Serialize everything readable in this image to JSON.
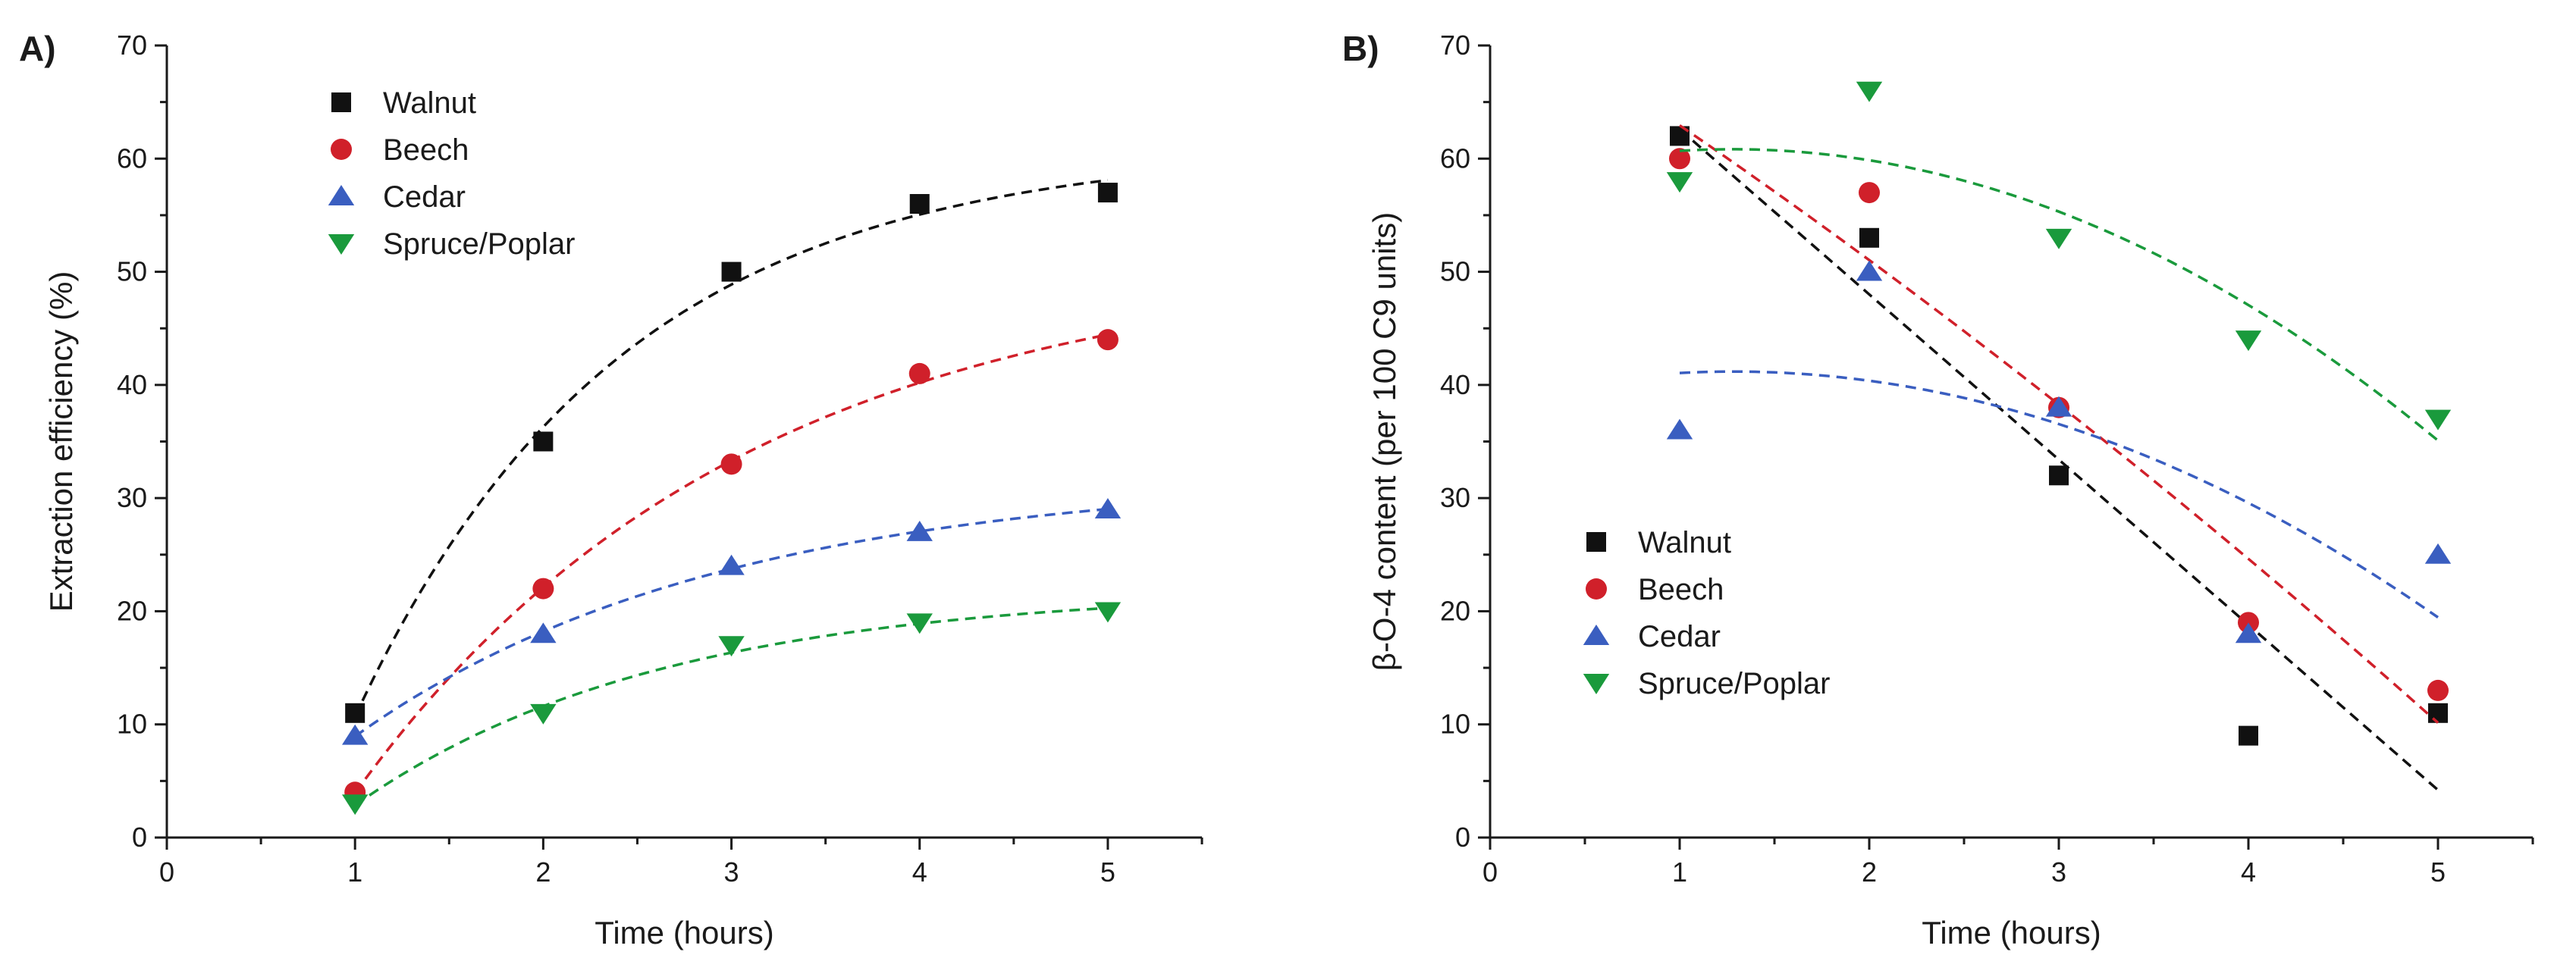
{
  "colors": {
    "Walnut": "#111111",
    "Beech": "#d0202a",
    "Cedar": "#3a5ec0",
    "Spruce/Poplar": "#1a9a3c",
    "axis": "#1a1a1a"
  },
  "chart_data": [
    {
      "type": "scatter",
      "panel_label": "A)",
      "title": "",
      "xlabel": "Time (hours)",
      "ylabel": "Extraction efficiency (%)",
      "xlim": [
        0,
        5.5
      ],
      "ylim": [
        0,
        70
      ],
      "x_ticks": [
        "0",
        "1",
        "2",
        "3",
        "4",
        "5"
      ],
      "y_ticks": [
        "0",
        "10",
        "20",
        "30",
        "40",
        "50",
        "60",
        "70"
      ],
      "grid": false,
      "legend_position": "top-left",
      "x": [
        1,
        2,
        3,
        4,
        5
      ],
      "series": [
        {
          "name": "Walnut",
          "marker": "square",
          "values": [
            11,
            35,
            50,
            56,
            57
          ],
          "fit": "exponential-rise"
        },
        {
          "name": "Beech",
          "marker": "circle",
          "values": [
            4,
            22,
            33,
            41,
            44
          ],
          "fit": "exponential-rise"
        },
        {
          "name": "Cedar",
          "marker": "triangle-up",
          "values": [
            9,
            18,
            24,
            27,
            29
          ],
          "fit": "exponential-rise"
        },
        {
          "name": "Spruce/Poplar",
          "marker": "triangle-down",
          "values": [
            3,
            11,
            17,
            19,
            20
          ],
          "fit": "exponential-rise"
        }
      ]
    },
    {
      "type": "scatter",
      "panel_label": "B)",
      "title": "",
      "xlabel": "Time (hours)",
      "ylabel": "β-O-4 content (per 100 C9 units)",
      "xlim": [
        0,
        5.5
      ],
      "ylim": [
        0,
        70
      ],
      "x_ticks": [
        "0",
        "1",
        "2",
        "3",
        "4",
        "5"
      ],
      "y_ticks": [
        "0",
        "10",
        "20",
        "30",
        "40",
        "50",
        "60",
        "70"
      ],
      "grid": false,
      "legend_position": "bottom-left",
      "x": [
        1,
        2,
        3,
        4,
        5
      ],
      "series": [
        {
          "name": "Walnut",
          "marker": "square",
          "values": [
            62,
            53,
            32,
            9,
            11
          ],
          "fit": "linear"
        },
        {
          "name": "Beech",
          "marker": "circle",
          "values": [
            60,
            57,
            38,
            19,
            13
          ],
          "fit": "quadratic"
        },
        {
          "name": "Cedar",
          "marker": "triangle-up",
          "values": [
            36,
            50,
            38,
            18,
            25
          ],
          "fit": "quadratic"
        },
        {
          "name": "Spruce/Poplar",
          "marker": "triangle-down",
          "values": [
            58,
            66,
            53,
            44,
            37
          ],
          "fit": "quadratic"
        }
      ]
    }
  ]
}
